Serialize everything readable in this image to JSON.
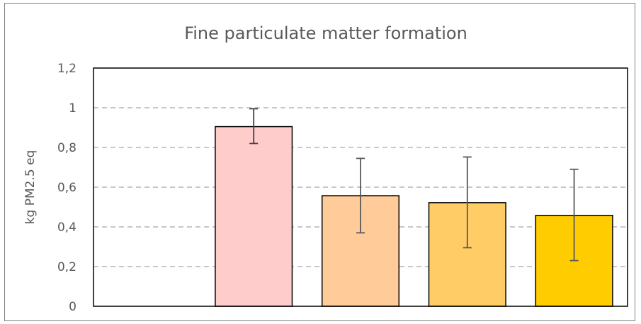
{
  "chart_data": {
    "type": "bar",
    "title": "Fine particulate matter formation",
    "ylabel": "kg PM2.5 eq",
    "xlabel": "",
    "ylim": [
      0,
      1.2
    ],
    "yticks": [
      0,
      0.2,
      0.4,
      0.6,
      0.8,
      1,
      1.2
    ],
    "ytick_labels": [
      "0",
      "0,2",
      "0,4",
      "0,6",
      "0,8",
      "1",
      "1,2"
    ],
    "grid": true,
    "categories": [
      "",
      "",
      "",
      "",
      ""
    ],
    "values": [
      null,
      0.905,
      0.557,
      0.522,
      0.458
    ],
    "error_low": [
      null,
      0.82,
      0.37,
      0.295,
      0.23
    ],
    "error_high": [
      null,
      0.995,
      0.745,
      0.752,
      0.69
    ],
    "colors": [
      "#ffffff",
      "#ffcccc",
      "#ffcc99",
      "#ffcc66",
      "#ffcc00"
    ]
  }
}
